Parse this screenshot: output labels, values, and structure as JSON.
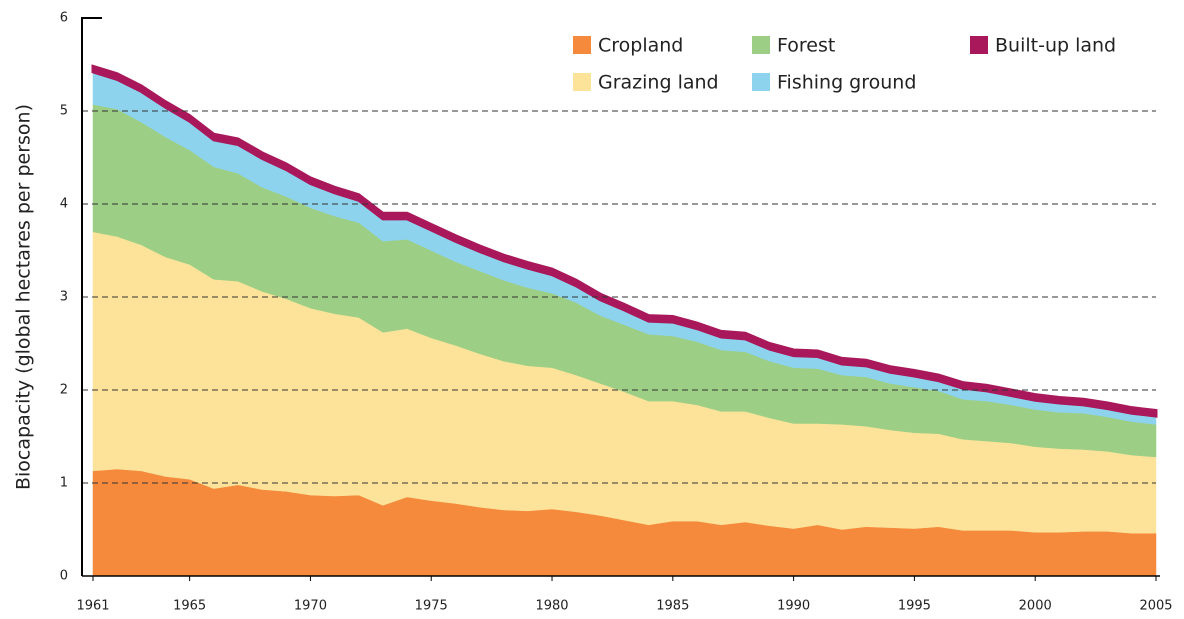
{
  "chart_data": {
    "type": "stacked_area",
    "y_label": "Biocapacity (global hectares per person)",
    "x": [
      1961,
      1962,
      1963,
      1964,
      1965,
      1966,
      1967,
      1968,
      1969,
      1970,
      1971,
      1972,
      1973,
      1974,
      1975,
      1976,
      1977,
      1978,
      1979,
      1980,
      1981,
      1982,
      1983,
      1984,
      1985,
      1986,
      1987,
      1988,
      1989,
      1990,
      1991,
      1992,
      1993,
      1994,
      1995,
      1996,
      1997,
      1998,
      1999,
      2000,
      2001,
      2002,
      2003,
      2004,
      2005
    ],
    "series": [
      {
        "name": "Cropland",
        "color": "#f58a3c",
        "values": [
          1.13,
          1.15,
          1.13,
          1.07,
          1.04,
          0.94,
          0.98,
          0.93,
          0.91,
          0.87,
          0.86,
          0.87,
          0.76,
          0.85,
          0.81,
          0.78,
          0.74,
          0.71,
          0.7,
          0.72,
          0.69,
          0.65,
          0.6,
          0.55,
          0.59,
          0.59,
          0.55,
          0.58,
          0.54,
          0.51,
          0.55,
          0.5,
          0.53,
          0.52,
          0.51,
          0.53,
          0.49,
          0.49,
          0.49,
          0.47,
          0.47,
          0.48,
          0.48,
          0.46,
          0.46
        ]
      },
      {
        "name": "Grazing land",
        "color": "#fde39a",
        "values": [
          2.57,
          2.5,
          2.43,
          2.36,
          2.31,
          2.25,
          2.19,
          2.13,
          2.07,
          2.01,
          1.96,
          1.91,
          1.86,
          1.81,
          1.75,
          1.7,
          1.65,
          1.6,
          1.56,
          1.52,
          1.47,
          1.42,
          1.38,
          1.33,
          1.29,
          1.25,
          1.22,
          1.19,
          1.16,
          1.13,
          1.09,
          1.13,
          1.08,
          1.05,
          1.03,
          1.0,
          0.98,
          0.96,
          0.94,
          0.92,
          0.9,
          0.88,
          0.86,
          0.84,
          0.82
        ]
      },
      {
        "name": "Forest",
        "color": "#9ccf85",
        "values": [
          1.37,
          1.37,
          1.32,
          1.29,
          1.23,
          1.21,
          1.16,
          1.12,
          1.1,
          1.08,
          1.05,
          1.02,
          0.98,
          0.96,
          0.94,
          0.9,
          0.89,
          0.87,
          0.84,
          0.8,
          0.78,
          0.73,
          0.72,
          0.72,
          0.7,
          0.68,
          0.66,
          0.64,
          0.61,
          0.6,
          0.59,
          0.53,
          0.53,
          0.5,
          0.49,
          0.46,
          0.43,
          0.43,
          0.41,
          0.4,
          0.39,
          0.39,
          0.37,
          0.36,
          0.35
        ]
      },
      {
        "name": "Fishing ground",
        "color": "#8dd3ee",
        "values": [
          0.35,
          0.32,
          0.33,
          0.32,
          0.31,
          0.29,
          0.31,
          0.31,
          0.29,
          0.26,
          0.25,
          0.24,
          0.24,
          0.22,
          0.22,
          0.22,
          0.21,
          0.21,
          0.21,
          0.2,
          0.18,
          0.17,
          0.16,
          0.14,
          0.15,
          0.14,
          0.14,
          0.14,
          0.13,
          0.13,
          0.13,
          0.12,
          0.12,
          0.12,
          0.12,
          0.11,
          0.12,
          0.11,
          0.1,
          0.1,
          0.1,
          0.09,
          0.09,
          0.09,
          0.09
        ]
      },
      {
        "name": "Built-up land",
        "color": "#a8185a",
        "values": [
          0.06,
          0.06,
          0.06,
          0.06,
          0.06,
          0.06,
          0.06,
          0.06,
          0.06,
          0.06,
          0.06,
          0.06,
          0.06,
          0.06,
          0.06,
          0.06,
          0.06,
          0.06,
          0.06,
          0.06,
          0.06,
          0.06,
          0.06,
          0.06,
          0.06,
          0.06,
          0.06,
          0.06,
          0.06,
          0.06,
          0.06,
          0.06,
          0.06,
          0.06,
          0.06,
          0.06,
          0.06,
          0.06,
          0.06,
          0.06,
          0.06,
          0.06,
          0.06,
          0.06,
          0.06
        ]
      }
    ],
    "xlim": [
      1961,
      2005
    ],
    "xticks": [
      1961,
      1965,
      1970,
      1975,
      1980,
      1985,
      1990,
      1995,
      2000,
      2005
    ],
    "ylim": [
      0,
      6
    ],
    "yticks": [
      0,
      1,
      2,
      3,
      4,
      5,
      6
    ],
    "grid": true
  }
}
